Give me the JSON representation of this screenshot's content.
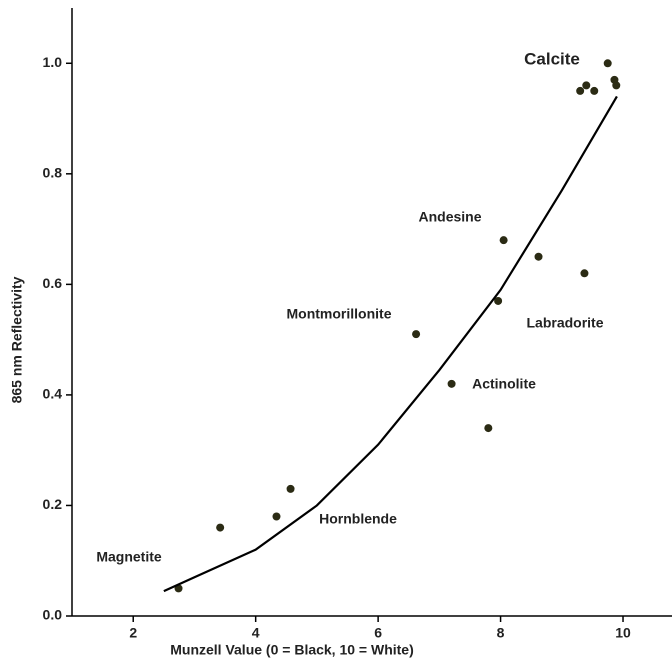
{
  "chart_data": {
    "type": "scatter",
    "x_label": "Munzell Value (0 = Black, 10 = White)",
    "y_label": "865 nm Reflectivity",
    "xlim": [
      1,
      10.8
    ],
    "ylim": [
      0,
      1.1
    ],
    "xticks": [
      2,
      4,
      6,
      8,
      10
    ],
    "yticks": [
      {
        "value": 0,
        "label": "0.0"
      },
      {
        "value": 0.2,
        "label": "0.2"
      },
      {
        "value": 0.4,
        "label": "0.4"
      },
      {
        "value": 0.6,
        "label": "0.6"
      },
      {
        "value": 0.8,
        "label": "0.8"
      },
      {
        "value": 1.0,
        "label": "1.0"
      }
    ],
    "series": [
      {
        "color": "#2b2b14",
        "x": [
          2.74,
          3.42,
          4.34,
          4.57,
          6.62,
          7.2,
          7.8,
          7.96,
          8.05,
          8.62,
          9.37,
          9.3,
          9.4,
          9.53,
          9.75,
          9.86,
          9.89
        ],
        "values": [
          0.05,
          0.16,
          0.18,
          0.23,
          0.51,
          0.42,
          0.34,
          0.57,
          0.68,
          0.65,
          0.62,
          0.95,
          0.96,
          0.95,
          1.0,
          0.97,
          0.96
        ]
      },
      {
        "type": "line",
        "color": "#000000",
        "x": [
          2.5,
          3,
          4,
          5,
          6,
          7,
          8,
          9,
          9.9
        ],
        "values": [
          0.045,
          0.07,
          0.12,
          0.2,
          0.31,
          0.445,
          0.59,
          0.77,
          0.94
        ]
      }
    ],
    "annotations": [
      "Calcite",
      "Andesine",
      "Montmorillonite",
      "Labradorite",
      "Actinolite",
      "Hornblende",
      "Magnetite"
    ]
  }
}
